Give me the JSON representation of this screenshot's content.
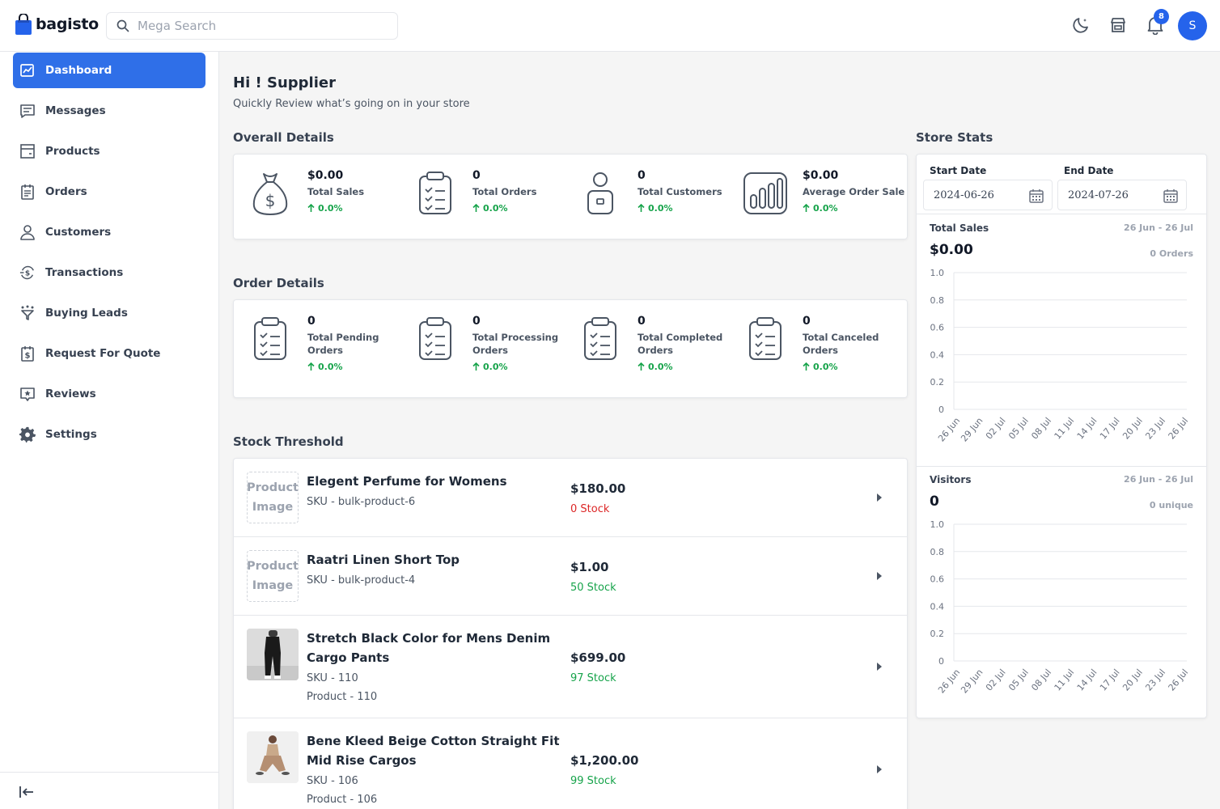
{
  "header": {
    "brand": "bagisto",
    "search_placeholder": "Mega Search",
    "notifications_count": "8",
    "avatar_initial": "S"
  },
  "sidebar": {
    "items": [
      {
        "label": "Dashboard",
        "icon": "dashboard-icon",
        "active": true
      },
      {
        "label": "Messages",
        "icon": "message-icon"
      },
      {
        "label": "Products",
        "icon": "product-icon"
      },
      {
        "label": "Orders",
        "icon": "orders-icon"
      },
      {
        "label": "Customers",
        "icon": "customer-icon"
      },
      {
        "label": "Transactions",
        "icon": "transaction-icon"
      },
      {
        "label": "Buying Leads",
        "icon": "funnel-icon"
      },
      {
        "label": "Request For Quote",
        "icon": "quote-icon"
      },
      {
        "label": "Reviews",
        "icon": "review-icon"
      },
      {
        "label": "Settings",
        "icon": "gear-icon"
      }
    ]
  },
  "greeting": {
    "title": "Hi ! Supplier",
    "subtitle": "Quickly Review what’s going on in your store"
  },
  "overall": {
    "title": "Overall Details",
    "stats": [
      {
        "value": "$0.00",
        "label": "Total Sales",
        "pct": "0.0%",
        "icon": "money-bag-icon"
      },
      {
        "value": "0",
        "label": "Total Orders",
        "pct": "0.0%",
        "icon": "clipboard-icon"
      },
      {
        "value": "0",
        "label": "Total Customers",
        "pct": "0.0%",
        "icon": "customer-icon"
      },
      {
        "value": "$0.00",
        "label": "Average Order Sale",
        "pct": "0.0%",
        "icon": "bar-chart-icon"
      }
    ]
  },
  "order_details": {
    "title": "Order Details",
    "stats": [
      {
        "value": "0",
        "label": "Total Pending Orders",
        "pct": "0.0%"
      },
      {
        "value": "0",
        "label": "Total Processing Orders",
        "pct": "0.0%"
      },
      {
        "value": "0",
        "label": "Total Completed Orders",
        "pct": "0.0%"
      },
      {
        "value": "0",
        "label": "Total Canceled Orders",
        "pct": "0.0%"
      }
    ]
  },
  "stock": {
    "title": "Stock Threshold",
    "placeholder_line1": "Product",
    "placeholder_line2": "Image",
    "items": [
      {
        "name": "Elegent Perfume for Womens",
        "sku": "SKU - bulk-product-6",
        "price": "$180.00",
        "stock": "0 Stock",
        "stock_color": "#dc2626"
      },
      {
        "name": "Raatri Linen Short Top",
        "sku": "SKU - bulk-product-4",
        "price": "$1.00",
        "stock": "50 Stock",
        "stock_color": "#16a34a"
      },
      {
        "name": "Stretch Black Color for Mens Denim Cargo Pants",
        "sku": "SKU - 110",
        "extra": "Product - 110",
        "price": "$699.00",
        "stock": "97 Stock",
        "stock_color": "#16a34a"
      },
      {
        "name": "Bene Kleed Beige Cotton Straight Fit Mid Rise Cargos",
        "sku": "SKU - 106",
        "extra": "Product - 106",
        "price": "$1,200.00",
        "stock": "99 Stock",
        "stock_color": "#16a34a"
      }
    ]
  },
  "store_stats": {
    "title": "Store Stats",
    "start_label": "Start Date",
    "start_value": "2024-06-26",
    "end_label": "End Date",
    "end_value": "2024-07-26",
    "sales": {
      "label": "Total Sales",
      "range": "26 Jun - 26 Jul",
      "value": "$0.00",
      "sub": "0 Orders"
    },
    "visitors": {
      "label": "Visitors",
      "range": "26 Jun - 26 Jul",
      "value": "0",
      "sub": "0 unique"
    }
  },
  "chart_data": [
    {
      "type": "bar",
      "title": "Total Sales",
      "categories": [
        "26 Jun",
        "29 Jun",
        "02 Jul",
        "05 Jul",
        "08 Jul",
        "11 Jul",
        "14 Jul",
        "17 Jul",
        "20 Jul",
        "23 Jul",
        "26 Jul"
      ],
      "values": [
        0,
        0,
        0,
        0,
        0,
        0,
        0,
        0,
        0,
        0,
        0
      ],
      "yticks": [
        "0",
        "0.2",
        "0.4",
        "0.6",
        "0.8",
        "1.0"
      ],
      "ylim": [
        0,
        1
      ],
      "grid": true
    },
    {
      "type": "bar",
      "title": "Visitors",
      "categories": [
        "26 Jun",
        "29 Jun",
        "02 Jul",
        "05 Jul",
        "08 Jul",
        "11 Jul",
        "14 Jul",
        "17 Jul",
        "20 Jul",
        "23 Jul",
        "26 Jul"
      ],
      "values": [
        0,
        0,
        0,
        0,
        0,
        0,
        0,
        0,
        0,
        0,
        0
      ],
      "yticks": [
        "0",
        "0.2",
        "0.4",
        "0.6",
        "0.8",
        "1.0"
      ],
      "ylim": [
        0,
        1
      ],
      "grid": true
    }
  ],
  "colors": {
    "accent": "#2f6fe8",
    "positive": "#16a34a",
    "negative": "#dc2626"
  }
}
